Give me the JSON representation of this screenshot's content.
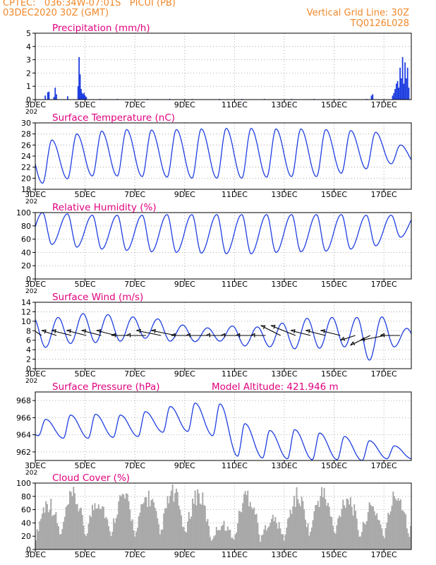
{
  "header": {
    "line1": "CPTEC:   036:34W-07:01S   PICUI (PB)",
    "line2": "03DEC2020 30Z (GMT)",
    "grid_note": "Vertical Grid Line: 30Z",
    "run_id": "TQ0126L028"
  },
  "colors": {
    "header": "#f0882a",
    "title": "#e0007f",
    "line": "#1f3fe0",
    "cloud": "#a9a9a9",
    "wind_arrow": "#000000"
  },
  "x_axis": {
    "tick_labels": [
      "3DEC",
      "5DEC",
      "7DEC",
      "9DEC",
      "11DEC",
      "13DEC",
      "15DEC",
      "17DEC"
    ],
    "tick_days": [
      3,
      5,
      7,
      9,
      11,
      13,
      15,
      17
    ],
    "range_days": [
      3,
      18.1
    ],
    "cut_label": "202"
  },
  "chart_data": [
    {
      "type": "bar",
      "title": "Precipitation (mm/h)",
      "ylim": [
        0,
        5
      ],
      "yticks": [
        "0",
        "1",
        "2",
        "3",
        "4",
        "5"
      ],
      "ytick_values": [
        0,
        1,
        2,
        3,
        4,
        5
      ],
      "x": [
        3.4,
        3.5,
        3.55,
        3.75,
        3.8,
        3.85,
        4.3,
        4.72,
        4.76,
        4.8,
        4.84,
        4.88,
        4.92,
        4.96,
        5.0,
        5.05,
        5.6,
        6.3,
        7.5,
        8.4,
        9.3,
        10.4,
        11.3,
        12.2,
        13.3,
        14.2,
        15.2,
        16.3,
        16.5,
        16.55,
        17.35,
        17.4,
        17.45,
        17.5,
        17.55,
        17.6,
        17.65,
        17.7,
        17.75,
        17.8,
        17.85,
        17.9,
        17.95,
        18.0
      ],
      "values": [
        0.3,
        0.55,
        0.6,
        0.2,
        0.9,
        0.4,
        0.25,
        1.0,
        3.2,
        1.9,
        0.8,
        0.5,
        0.4,
        0.5,
        0.3,
        0.2,
        0.05,
        0.05,
        0.05,
        0.05,
        0.05,
        0.05,
        0.05,
        0.05,
        0.05,
        0.05,
        0.05,
        0.05,
        0.3,
        0.4,
        0.3,
        0.5,
        0.8,
        1.2,
        1.4,
        0.9,
        2.4,
        1.6,
        3.2,
        1.2,
        2.8,
        1.6,
        2.4,
        0.9
      ]
    },
    {
      "type": "line",
      "title": "Surface Temperature (nC)",
      "ylim": [
        18,
        30
      ],
      "yticks": [
        "18",
        "20",
        "22",
        "24",
        "26",
        "28",
        "30"
      ],
      "ytick_values": [
        18,
        20,
        22,
        24,
        26,
        28,
        30
      ],
      "diurnal": {
        "min_hour": 7,
        "max_hour": 16,
        "maxima": [
          26.9,
          28.0,
          28.5,
          28.8,
          28.7,
          28.8,
          28.9,
          29.0,
          29.0,
          28.9,
          28.9,
          28.8,
          28.6,
          28.3,
          26.0
        ],
        "minima": [
          19.1,
          19.9,
          20.4,
          20.4,
          20.3,
          20.2,
          20.0,
          20.0,
          20.0,
          20.2,
          20.3,
          20.3,
          20.9,
          21.7,
          22.6
        ]
      }
    },
    {
      "type": "line",
      "title": "Relative Humidity (%)",
      "ylim": [
        0,
        100
      ],
      "yticks": [
        "0",
        "20",
        "40",
        "60",
        "80",
        "100"
      ],
      "ytick_values": [
        0,
        20,
        40,
        60,
        80,
        100
      ],
      "diurnal": {
        "min_hour": 16,
        "max_hour": 7,
        "maxima": [
          100,
          98,
          96,
          96,
          96,
          97,
          97,
          97,
          97,
          97,
          97,
          97,
          97,
          96,
          96
        ],
        "minima": [
          52,
          48,
          45,
          43,
          41,
          40,
          39,
          38,
          38,
          40,
          41,
          42,
          45,
          50,
          63
        ]
      }
    },
    {
      "type": "line",
      "title": "Surface Wind (m/s)",
      "ylim": [
        0,
        14
      ],
      "yticks": [
        "0",
        "2",
        "4",
        "6",
        "8",
        "10",
        "12",
        "14"
      ],
      "ytick_values": [
        0,
        2,
        4,
        6,
        8,
        10,
        12,
        14
      ],
      "diurnal": {
        "min_hour": 10,
        "max_hour": 22,
        "maxima": [
          10.8,
          11.6,
          11.4,
          10.9,
          10.5,
          9.2,
          8.6,
          9.0,
          8.8,
          9.6,
          10.6,
          10.8,
          10.8,
          10.9,
          8.5
        ],
        "minima": [
          4.5,
          5.3,
          5.5,
          5.8,
          6.4,
          5.8,
          5.7,
          5.8,
          4.8,
          4.6,
          4.2,
          4.3,
          4.6,
          1.8,
          4.6
        ]
      },
      "wind_arrows": {
        "y": 7.0,
        "days": [
          3.25,
          3.85,
          4.45,
          5.05,
          5.65,
          6.25,
          6.85,
          7.45,
          8.05,
          8.65,
          9.25,
          9.85,
          10.45,
          11.05,
          11.65,
          12.25,
          12.85,
          13.45,
          14.05,
          14.65,
          15.25,
          15.85,
          16.45,
          17.05,
          17.65
        ],
        "u": [
          -3,
          -3,
          -4,
          -4,
          -4,
          -4,
          -4,
          -4,
          -5,
          -5,
          -4,
          -4,
          -3,
          -3,
          -3,
          -3,
          -4,
          -5,
          -4,
          -4,
          -4,
          -3,
          -4,
          -5,
          -4
        ],
        "v": [
          2,
          1,
          1,
          1,
          1,
          1,
          0,
          0,
          1,
          1,
          0,
          0,
          0,
          0,
          0,
          0,
          2,
          2,
          1,
          1,
          1,
          -1,
          -2,
          -1,
          0
        ]
      }
    },
    {
      "type": "line",
      "title": "Surface Pressure (hPa)",
      "annotation": "Model Altitude: 421.946 m",
      "ylim": [
        961,
        969
      ],
      "yticks": [
        "962",
        "964",
        "966",
        "968"
      ],
      "ytick_values": [
        962,
        964,
        966,
        968
      ],
      "diurnal": {
        "min_hour": 3,
        "max_hour": 10,
        "maxima": [
          965.8,
          966.3,
          966.4,
          966.3,
          966.7,
          967.3,
          967.7,
          967.6,
          965.3,
          964.5,
          964.6,
          964.2,
          963.8,
          963.3,
          962.7
        ],
        "minima": [
          963.9,
          963.6,
          963.6,
          963.7,
          963.8,
          964.3,
          964.4,
          963.9,
          961.5,
          961.3,
          961.2,
          961.1,
          961.1,
          961.0,
          961.2
        ]
      }
    },
    {
      "type": "area",
      "title": "Cloud Cover (%)",
      "ylim": [
        0,
        100
      ],
      "yticks": [
        "0",
        "20",
        "40",
        "60",
        "80",
        "100"
      ],
      "ytick_values": [
        0,
        20,
        40,
        60,
        80,
        100
      ],
      "daily_peak": [
        85,
        95,
        90,
        95,
        95,
        100,
        100,
        45,
        100,
        55,
        95,
        100,
        95,
        75,
        100
      ]
    }
  ]
}
